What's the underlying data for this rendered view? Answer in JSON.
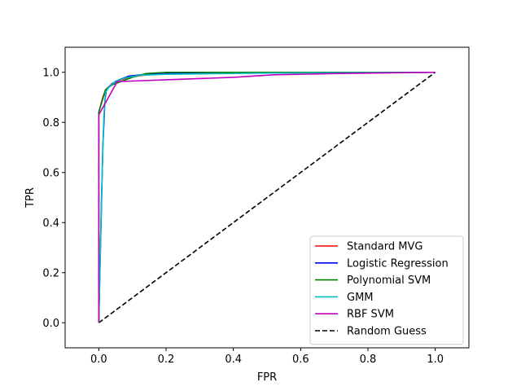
{
  "chart_data": {
    "type": "line",
    "title": "",
    "xlabel": "FPR",
    "ylabel": "TPR",
    "xlim": [
      -0.1,
      1.1
    ],
    "ylim": [
      -0.1,
      1.1
    ],
    "xticks": [
      0.0,
      0.2,
      0.4,
      0.6,
      0.8,
      1.0
    ],
    "yticks": [
      0.0,
      0.2,
      0.4,
      0.6,
      0.8,
      1.0
    ],
    "xtick_labels": [
      "0.0",
      "0.2",
      "0.4",
      "0.6",
      "0.8",
      "1.0"
    ],
    "ytick_labels": [
      "0.0",
      "0.2",
      "0.4",
      "0.6",
      "0.8",
      "1.0"
    ],
    "grid": false,
    "legend_position": "bottom-right",
    "series": [
      {
        "name": "Standard MVG",
        "color": "#ff0000",
        "dash": "solid",
        "points": [
          [
            0.0,
            0.0
          ],
          [
            0.0,
            0.84
          ],
          [
            0.012,
            0.9
          ],
          [
            0.02,
            0.93
          ],
          [
            0.04,
            0.955
          ],
          [
            0.06,
            0.968
          ],
          [
            0.09,
            0.98
          ],
          [
            0.14,
            0.99
          ],
          [
            0.2,
            0.995
          ],
          [
            0.5,
            0.998
          ],
          [
            1.0,
            1.0
          ]
        ]
      },
      {
        "name": "Logistic Regression",
        "color": "#0000ff",
        "dash": "solid",
        "points": [
          [
            0.0,
            0.0
          ],
          [
            0.005,
            0.3
          ],
          [
            0.012,
            0.7
          ],
          [
            0.018,
            0.88
          ],
          [
            0.022,
            0.93
          ],
          [
            0.04,
            0.955
          ],
          [
            0.06,
            0.97
          ],
          [
            0.09,
            0.985
          ],
          [
            0.14,
            0.992
          ],
          [
            0.25,
            0.996
          ],
          [
            0.5,
            0.999
          ],
          [
            1.0,
            1.0
          ]
        ]
      },
      {
        "name": "Polynomial SVM",
        "color": "#008000",
        "dash": "solid",
        "points": [
          [
            0.0,
            0.0
          ],
          [
            0.0,
            0.84
          ],
          [
            0.02,
            0.93
          ],
          [
            0.04,
            0.95
          ],
          [
            0.07,
            0.965
          ],
          [
            0.1,
            0.98
          ],
          [
            0.14,
            0.995
          ],
          [
            0.2,
            1.0
          ],
          [
            1.0,
            1.0
          ]
        ]
      },
      {
        "name": "GMM",
        "color": "#00bfbf",
        "dash": "solid",
        "points": [
          [
            0.0,
            0.0
          ],
          [
            0.008,
            0.5
          ],
          [
            0.015,
            0.82
          ],
          [
            0.02,
            0.92
          ],
          [
            0.03,
            0.94
          ],
          [
            0.05,
            0.965
          ],
          [
            0.08,
            0.978
          ],
          [
            0.12,
            0.988
          ],
          [
            0.2,
            0.992
          ],
          [
            0.5,
            0.997
          ],
          [
            1.0,
            1.0
          ]
        ]
      },
      {
        "name": "RBF SVM",
        "color": "#bf00bf",
        "dash": "solid",
        "points": [
          [
            0.0,
            0.0
          ],
          [
            0.0,
            0.83
          ],
          [
            0.055,
            0.963
          ],
          [
            0.1,
            0.965
          ],
          [
            0.2,
            0.97
          ],
          [
            0.3,
            0.975
          ],
          [
            0.4,
            0.98
          ],
          [
            0.52,
            0.99
          ],
          [
            0.7,
            0.995
          ],
          [
            1.0,
            1.0
          ]
        ]
      },
      {
        "name": "Random Guess",
        "color": "#000000",
        "dash": "dashed",
        "points": [
          [
            0.0,
            0.0
          ],
          [
            1.0,
            1.0
          ]
        ]
      }
    ]
  }
}
